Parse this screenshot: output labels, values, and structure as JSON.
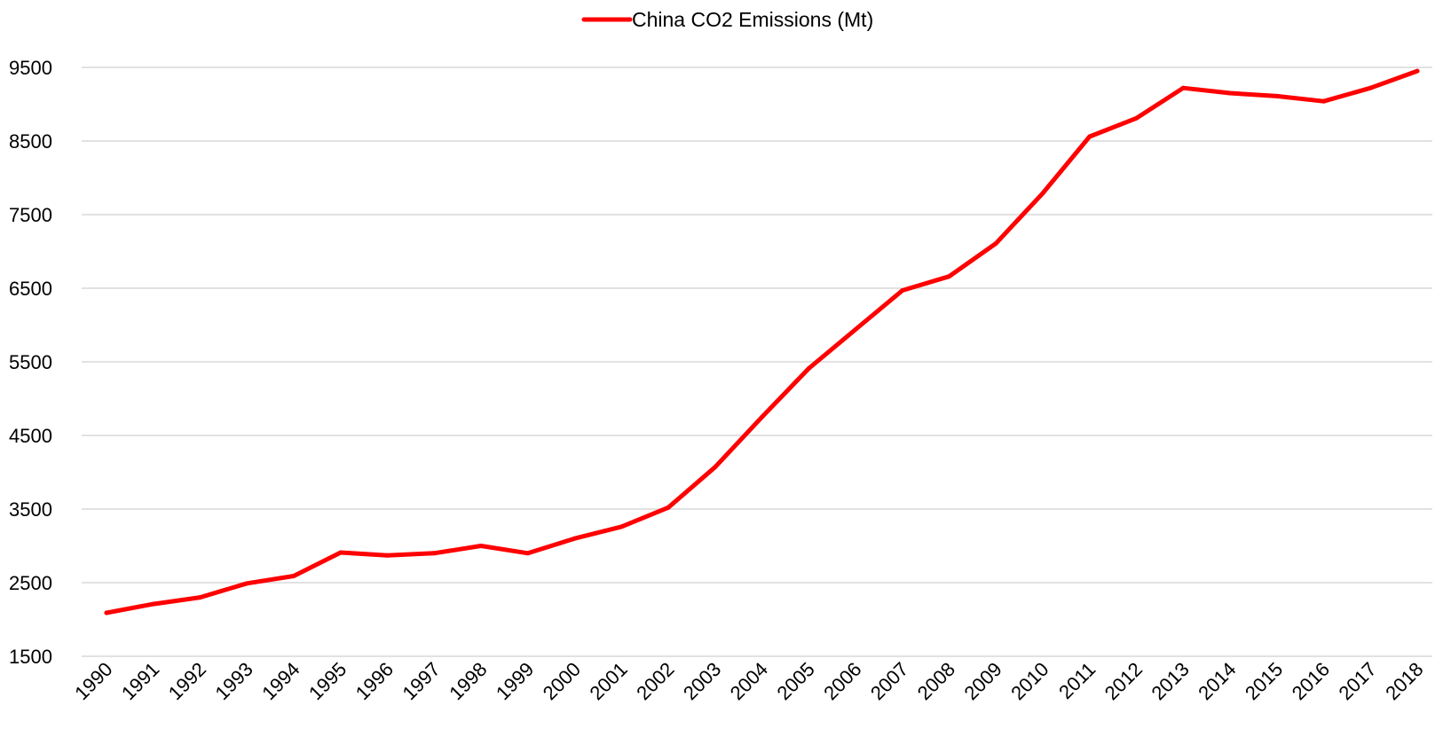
{
  "chart_data": {
    "type": "line",
    "title": "",
    "xlabel": "",
    "ylabel": "",
    "ylim": [
      1500,
      9500
    ],
    "yticks": [
      1500,
      2500,
      3500,
      4500,
      5500,
      6500,
      7500,
      8500,
      9500
    ],
    "grid": "horizontal",
    "legend": {
      "position": "top-center",
      "entries": [
        "China CO2 Emissions (Mt)"
      ]
    },
    "x": [
      "1990",
      "1991",
      "1992",
      "1993",
      "1994",
      "1995",
      "1996",
      "1997",
      "1998",
      "1999",
      "2000",
      "2001",
      "2002",
      "2003",
      "2004",
      "2005",
      "2006",
      "2007",
      "2008",
      "2009",
      "2010",
      "2011",
      "2012",
      "2013",
      "2014",
      "2015",
      "2016",
      "2017",
      "2018"
    ],
    "series": [
      {
        "name": "China CO2 Emissions (Mt)",
        "color": "#ff0000",
        "values": [
          2090,
          2210,
          2300,
          2490,
          2590,
          2910,
          2870,
          2900,
          3000,
          2900,
          3100,
          3260,
          3520,
          4070,
          4750,
          5410,
          5940,
          6470,
          6660,
          7110,
          7790,
          8560,
          8810,
          9220,
          9150,
          9110,
          9040,
          9220,
          9450
        ]
      }
    ]
  }
}
